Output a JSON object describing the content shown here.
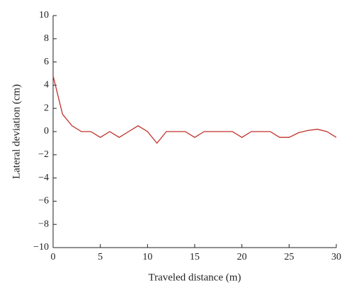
{
  "chart_data": {
    "type": "line",
    "x_label": "Traveled distance (m)",
    "y_label": "Lateral deviation (cm)",
    "x": [
      0,
      1,
      2,
      3,
      4,
      5,
      6,
      7,
      8,
      9,
      10,
      11,
      12,
      13,
      14,
      15,
      16,
      17,
      18,
      19,
      20,
      21,
      22,
      23,
      24,
      25,
      26,
      27,
      28,
      29,
      30
    ],
    "series": [
      {
        "color": "#c0302a",
        "values": [
          4.8,
          1.5,
          0.5,
          0,
          0,
          -0.5,
          0,
          -0.5,
          0,
          0.5,
          0,
          -1,
          0,
          0,
          0,
          -0.5,
          0,
          0,
          0,
          0,
          -0.5,
          0,
          0,
          0,
          -0.5,
          -0.5,
          -0.1,
          0.1,
          0.2,
          0,
          -0.5
        ]
      }
    ],
    "xlim": [
      0,
      30
    ],
    "xticks": [
      0,
      5,
      10,
      15,
      20,
      25,
      30
    ],
    "ylim": [
      -10,
      10
    ],
    "yticks": [
      {
        "value": -10,
        "label": "−10"
      },
      {
        "value": -8,
        "label": "−8"
      },
      {
        "value": -6,
        "label": "−6"
      },
      {
        "value": -4,
        "label": "−4"
      },
      {
        "value": -2,
        "label": "−2"
      },
      0,
      2,
      4,
      6,
      8,
      10
    ],
    "grid": false
  }
}
